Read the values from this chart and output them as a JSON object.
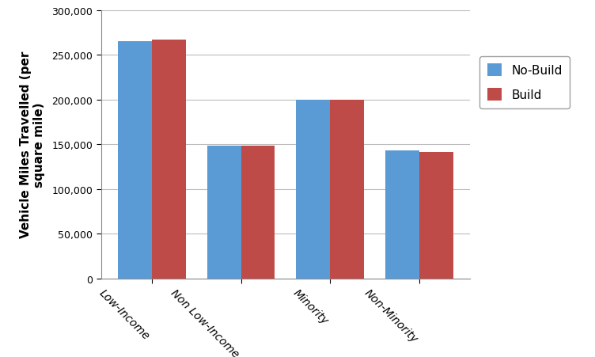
{
  "categories": [
    "Low-Income",
    "Non Low-Income",
    "Minority",
    "Non-Minority"
  ],
  "no_build_values": [
    265000,
    148000,
    200000,
    143000
  ],
  "build_values": [
    267000,
    148000,
    200000,
    141000
  ],
  "no_build_color": "#5B9BD5",
  "build_color": "#BE4B48",
  "ylabel": "Vehicle Miles Travelled (per\nsquare mile)",
  "ylim": [
    0,
    300000
  ],
  "ytick_interval": 50000,
  "legend_labels": [
    "No-Build",
    "Build"
  ],
  "bar_width": 0.38,
  "figsize": [
    7.52,
    4.52
  ],
  "dpi": 100,
  "background_color": "#ffffff",
  "plot_background": "#ffffff",
  "grid_color": "#bbbbbb",
  "xlabel_rotation": -45,
  "xlabel_ha": "right"
}
